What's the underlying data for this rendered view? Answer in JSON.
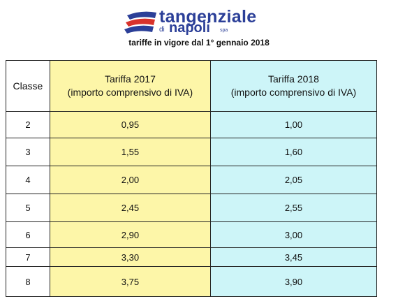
{
  "header": {
    "logo": {
      "name": "tangenziale",
      "prefix": "di",
      "city": "napoli",
      "suffix": "spa"
    },
    "subtitle": "tariffe in vigore dal 1° gennaio 2018"
  },
  "table": {
    "columns": [
      {
        "title": "Classe"
      },
      {
        "title": "Tariffa 2017",
        "note": "(importo comprensivo di IVA)"
      },
      {
        "title": "Tariffa 2018",
        "note": "(importo comprensivo di IVA)"
      }
    ],
    "rows": [
      [
        "2",
        "0,95",
        "1,00"
      ],
      [
        "3",
        "1,55",
        "1,60"
      ],
      [
        "4",
        "2,00",
        "2,05"
      ],
      [
        "5",
        "2,45",
        "2,55"
      ],
      [
        "6",
        "2,90",
        "3,00"
      ],
      [
        "7",
        "3,30",
        "3,45"
      ],
      [
        "8",
        "3,75",
        "3,90"
      ]
    ]
  }
}
